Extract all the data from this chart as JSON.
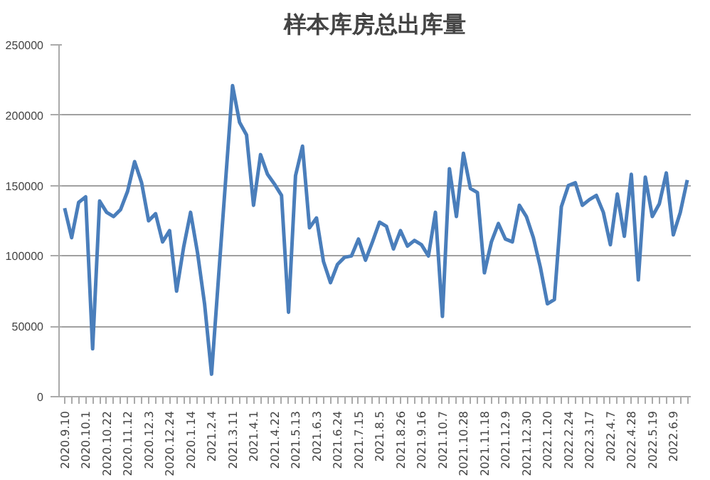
{
  "chart_data": {
    "type": "line",
    "title": "样本库房总出库量",
    "categories": [
      "2020.9.10",
      null,
      null,
      "2020.10.1",
      null,
      null,
      "2020.10.22",
      null,
      null,
      "2020.11.12",
      null,
      null,
      "2020.12.3",
      null,
      null,
      "2020.12.24",
      null,
      null,
      "2020.1.14",
      null,
      null,
      "2021.2.4",
      null,
      null,
      "2021.3.11",
      null,
      null,
      "2021.4.1",
      null,
      null,
      "2021.4.22",
      null,
      null,
      "2021.5.13",
      null,
      null,
      "2021.6.3",
      null,
      null,
      "2021.6.24",
      null,
      null,
      "2021.7.15",
      null,
      null,
      "2021.8.5",
      null,
      null,
      "2021.8.26",
      null,
      null,
      "2021.9.16",
      null,
      null,
      "2021.10.7",
      null,
      null,
      "2021.10.28",
      null,
      null,
      "2021.11.18",
      null,
      null,
      "2021.12.9",
      null,
      null,
      "2021.12.30",
      null,
      null,
      "2022.1.20",
      null,
      null,
      "2022.2.24",
      null,
      null,
      "2022.3.17",
      null,
      null,
      "2022.4.7",
      null,
      null,
      "2022.4.28",
      null,
      null,
      "2022.5.19",
      null,
      null,
      "2022.6.9",
      null,
      null
    ],
    "series": [
      {
        "color": "#4a7ebb",
        "values": [
          134000,
          113000,
          138000,
          142000,
          34000,
          139000,
          131000,
          128000,
          133000,
          146000,
          167000,
          152000,
          125000,
          130000,
          110000,
          118000,
          75000,
          106000,
          131000,
          102000,
          66000,
          16000,
          85000,
          153000,
          221000,
          195000,
          186000,
          136000,
          172000,
          158000,
          151000,
          143000,
          60000,
          157000,
          178000,
          120000,
          127000,
          96000,
          81000,
          94000,
          99000,
          100000,
          112000,
          97000,
          110000,
          124000,
          121000,
          105000,
          118000,
          107000,
          111000,
          108000,
          100000,
          131000,
          57000,
          162000,
          128000,
          173000,
          148000,
          145000,
          88000,
          110000,
          123000,
          112000,
          110000,
          136000,
          128000,
          113000,
          92000,
          66000,
          69000,
          135000,
          150000,
          152000,
          136000,
          140000,
          143000,
          131000,
          108000,
          144000,
          114000,
          158000,
          83000,
          156000,
          128000,
          137000,
          159000,
          115000,
          131000,
          154000
        ]
      }
    ],
    "ylim": [
      0,
      250000
    ],
    "yticks": [
      0,
      50000,
      100000,
      150000,
      200000,
      250000
    ],
    "grid": "y"
  }
}
